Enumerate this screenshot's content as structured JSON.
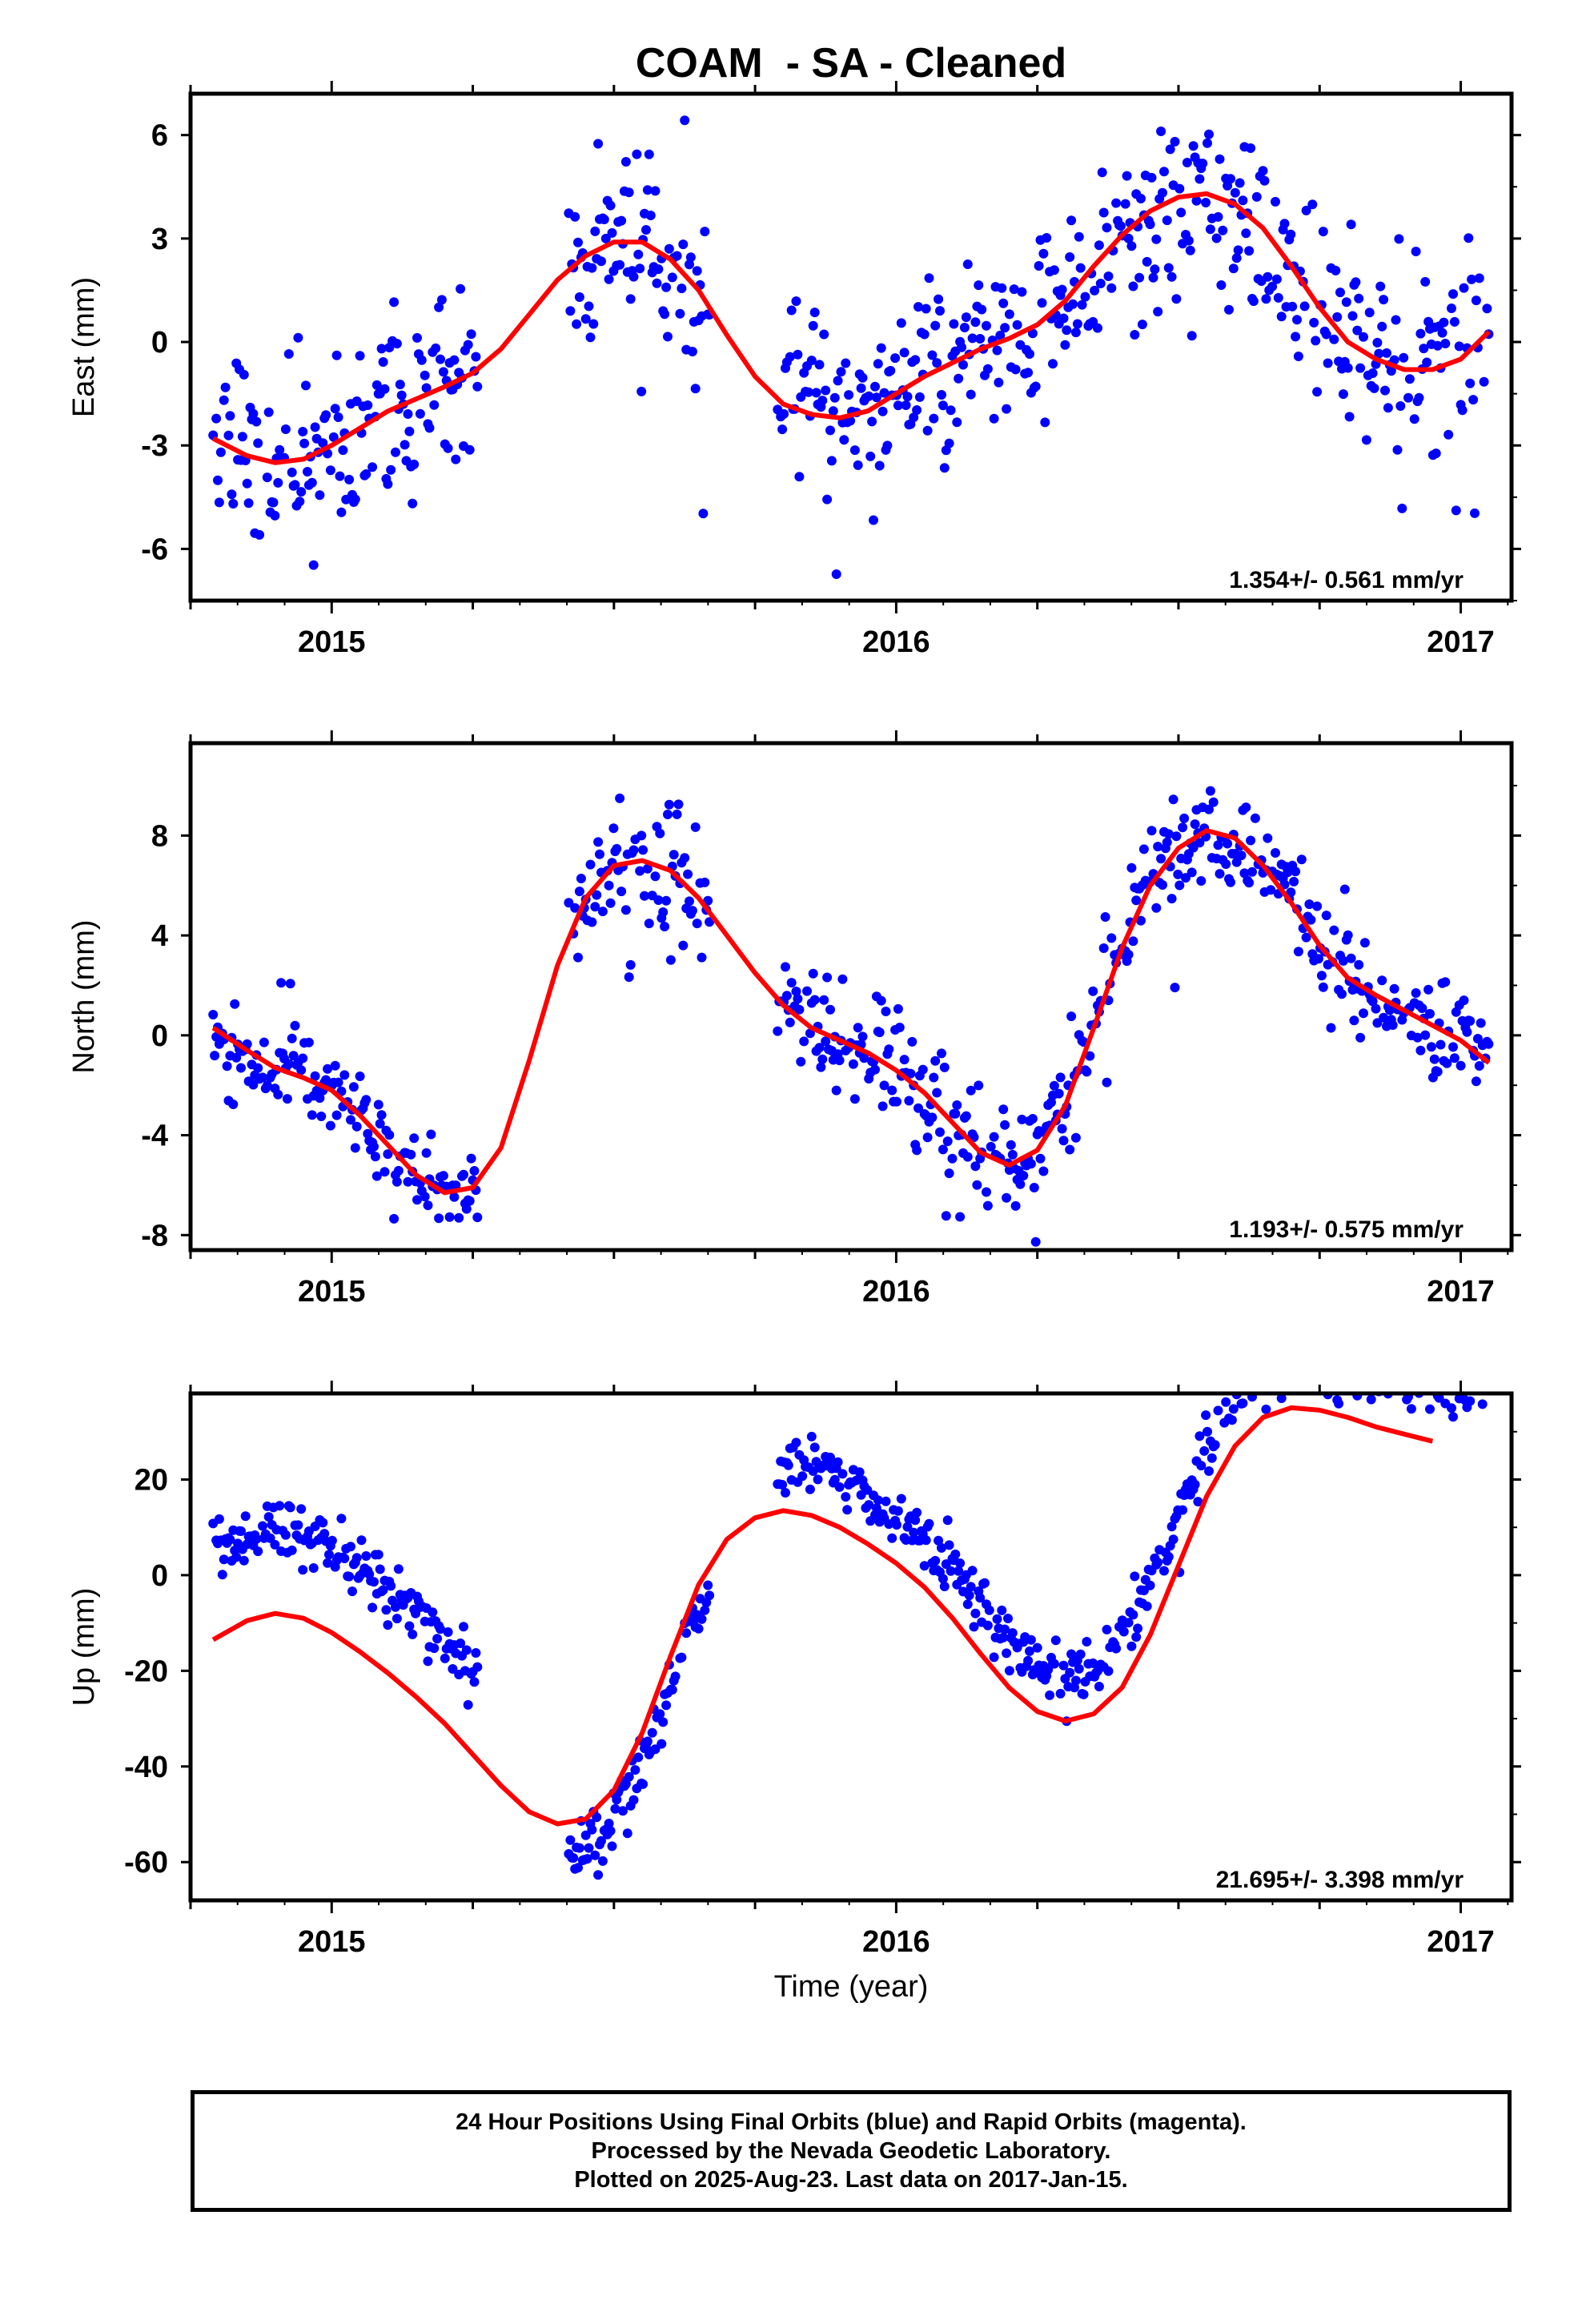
{
  "chart_data": {
    "title": "COAM  - SA - Cleaned",
    "type": "scatter",
    "xlabel": "Time (year)",
    "x_tick_labels": [
      "2015",
      "2016",
      "2017"
    ],
    "x_ticks": [
      2015,
      2016,
      2017
    ],
    "xlim": [
      2014.75,
      2017.09
    ],
    "colors": {
      "points": "#0000ff",
      "fit": "#ff0000"
    },
    "panels": [
      {
        "id": "east",
        "ylabel": "East (mm)",
        "ylim": [
          -7.5,
          7.2
        ],
        "y_ticks": [
          -6,
          -3,
          0,
          3,
          6
        ],
        "y_tick_labels": [
          "-6",
          "-3",
          "0",
          "3",
          "6"
        ],
        "rate_text": "1.354+/- 0.561 mm/yr",
        "data_segments": [
          {
            "start": 2014.79,
            "end": 2015.26,
            "amplitude": 1.3,
            "seed": 11,
            "outlier_rate": 0.08
          },
          {
            "start": 2015.42,
            "end": 2015.67,
            "amplitude": 1.2,
            "seed": 12,
            "outlier_rate": 0.08
          },
          {
            "start": 2015.79,
            "end": 2017.05,
            "amplitude": 1.4,
            "seed": 13,
            "outlier_rate": 0.06
          }
        ],
        "fit_curve": [
          [
            2014.79,
            -2.8
          ],
          [
            2014.85,
            -3.3
          ],
          [
            2014.9,
            -3.5
          ],
          [
            2014.95,
            -3.4
          ],
          [
            2015.0,
            -3.0
          ],
          [
            2015.05,
            -2.5
          ],
          [
            2015.1,
            -2.0
          ],
          [
            2015.2,
            -1.3
          ],
          [
            2015.25,
            -0.9
          ],
          [
            2015.3,
            -0.2
          ],
          [
            2015.35,
            0.8
          ],
          [
            2015.4,
            1.8
          ],
          [
            2015.45,
            2.5
          ],
          [
            2015.5,
            2.9
          ],
          [
            2015.55,
            2.9
          ],
          [
            2015.6,
            2.4
          ],
          [
            2015.65,
            1.5
          ],
          [
            2015.7,
            0.2
          ],
          [
            2015.75,
            -1.0
          ],
          [
            2015.8,
            -1.8
          ],
          [
            2015.85,
            -2.1
          ],
          [
            2015.9,
            -2.2
          ],
          [
            2015.95,
            -2.0
          ],
          [
            2016.0,
            -1.5
          ],
          [
            2016.05,
            -1.0
          ],
          [
            2016.1,
            -0.6
          ],
          [
            2016.15,
            -0.2
          ],
          [
            2016.2,
            0.1
          ],
          [
            2016.25,
            0.5
          ],
          [
            2016.3,
            1.2
          ],
          [
            2016.35,
            2.2
          ],
          [
            2016.4,
            3.1
          ],
          [
            2016.45,
            3.8
          ],
          [
            2016.5,
            4.2
          ],
          [
            2016.55,
            4.3
          ],
          [
            2016.6,
            4.0
          ],
          [
            2016.65,
            3.3
          ],
          [
            2016.7,
            2.2
          ],
          [
            2016.75,
            1.0
          ],
          [
            2016.8,
            0.0
          ],
          [
            2016.85,
            -0.5
          ],
          [
            2016.9,
            -0.8
          ],
          [
            2016.95,
            -0.8
          ],
          [
            2017.0,
            -0.5
          ],
          [
            2017.05,
            0.3
          ]
        ]
      },
      {
        "id": "north",
        "ylabel": "North (mm)",
        "ylim": [
          -8.6,
          11.7
        ],
        "y_ticks": [
          -8,
          -4,
          0,
          4,
          8
        ],
        "y_tick_labels": [
          "-8",
          "-4",
          "0",
          "4",
          "8"
        ],
        "rate_text": "1.193+/- 0.575 mm/yr",
        "data_segments": [
          {
            "start": 2014.79,
            "end": 2015.26,
            "amplitude": 0.9,
            "seed": 21,
            "outlier_rate": 0.05
          },
          {
            "start": 2015.42,
            "end": 2015.67,
            "amplitude": 1.2,
            "seed": 22,
            "outlier_rate": 0.06
          },
          {
            "start": 2015.79,
            "end": 2017.05,
            "amplitude": 1.0,
            "seed": 23,
            "outlier_rate": 0.05
          }
        ],
        "fit_curve": [
          [
            2014.79,
            0.3
          ],
          [
            2014.85,
            -0.6
          ],
          [
            2014.9,
            -1.3
          ],
          [
            2014.95,
            -1.7
          ],
          [
            2015.0,
            -2.2
          ],
          [
            2015.05,
            -3.2
          ],
          [
            2015.1,
            -4.4
          ],
          [
            2015.15,
            -5.6
          ],
          [
            2015.2,
            -6.3
          ],
          [
            2015.25,
            -6.1
          ],
          [
            2015.3,
            -4.5
          ],
          [
            2015.35,
            -1.0
          ],
          [
            2015.4,
            2.8
          ],
          [
            2015.45,
            5.5
          ],
          [
            2015.5,
            6.8
          ],
          [
            2015.55,
            7.0
          ],
          [
            2015.6,
            6.6
          ],
          [
            2015.65,
            5.5
          ],
          [
            2015.7,
            4.0
          ],
          [
            2015.75,
            2.5
          ],
          [
            2015.8,
            1.2
          ],
          [
            2015.85,
            0.3
          ],
          [
            2015.9,
            -0.2
          ],
          [
            2015.95,
            -0.7
          ],
          [
            2016.0,
            -1.4
          ],
          [
            2016.05,
            -2.3
          ],
          [
            2016.1,
            -3.5
          ],
          [
            2016.15,
            -4.7
          ],
          [
            2016.2,
            -5.2
          ],
          [
            2016.25,
            -4.6
          ],
          [
            2016.3,
            -2.8
          ],
          [
            2016.35,
            0.3
          ],
          [
            2016.4,
            3.5
          ],
          [
            2016.45,
            6.0
          ],
          [
            2016.5,
            7.5
          ],
          [
            2016.55,
            8.2
          ],
          [
            2016.6,
            7.9
          ],
          [
            2016.65,
            6.8
          ],
          [
            2016.7,
            5.3
          ],
          [
            2016.75,
            3.6
          ],
          [
            2016.8,
            2.3
          ],
          [
            2016.85,
            1.6
          ],
          [
            2016.9,
            1.0
          ],
          [
            2016.95,
            0.4
          ],
          [
            2017.0,
            -0.2
          ],
          [
            2017.05,
            -1.1
          ]
        ]
      },
      {
        "id": "up",
        "ylabel": "Up (mm)",
        "ylim": [
          -68,
          38
        ],
        "y_ticks": [
          -60,
          -40,
          -20,
          0,
          20
        ],
        "y_tick_labels": [
          "-60",
          "-40",
          "-20",
          "0",
          "20"
        ],
        "rate_text": "21.695+/- 3.398 mm/yr",
        "data_segments": [
          {
            "start": 2014.79,
            "end": 2015.26,
            "amplitude": 3.0,
            "seed": 31,
            "offset": 18,
            "outlier_rate": 0.04
          },
          {
            "start": 2015.42,
            "end": 2015.67,
            "amplitude": 3.0,
            "seed": 32,
            "offset": -6,
            "outlier_rate": 0.04
          },
          {
            "start": 2015.79,
            "end": 2017.05,
            "amplitude": 3.0,
            "seed": 33,
            "offset": 10,
            "outlier_rate": 0.03
          }
        ],
        "fit_curve": [
          [
            2014.79,
            -13.5
          ],
          [
            2014.85,
            -9.5
          ],
          [
            2014.9,
            -8.0
          ],
          [
            2014.95,
            -9.0
          ],
          [
            2015.0,
            -12.0
          ],
          [
            2015.05,
            -16.0
          ],
          [
            2015.1,
            -20.5
          ],
          [
            2015.15,
            -25.5
          ],
          [
            2015.2,
            -31.0
          ],
          [
            2015.25,
            -37.5
          ],
          [
            2015.3,
            -44.0
          ],
          [
            2015.35,
            -49.5
          ],
          [
            2015.4,
            -52.0
          ],
          [
            2015.45,
            -51.0
          ],
          [
            2015.5,
            -45.0
          ],
          [
            2015.55,
            -33.0
          ],
          [
            2015.6,
            -17.0
          ],
          [
            2015.65,
            -2.0
          ],
          [
            2015.7,
            7.5
          ],
          [
            2015.75,
            12.0
          ],
          [
            2015.8,
            13.5
          ],
          [
            2015.85,
            12.5
          ],
          [
            2015.9,
            10.0
          ],
          [
            2015.95,
            6.5
          ],
          [
            2016.0,
            2.5
          ],
          [
            2016.05,
            -2.5
          ],
          [
            2016.1,
            -9.0
          ],
          [
            2016.15,
            -16.5
          ],
          [
            2016.2,
            -23.5
          ],
          [
            2016.25,
            -28.5
          ],
          [
            2016.3,
            -30.5
          ],
          [
            2016.35,
            -29.0
          ],
          [
            2016.4,
            -23.5
          ],
          [
            2016.45,
            -12.5
          ],
          [
            2016.5,
            2.0
          ],
          [
            2016.55,
            16.5
          ],
          [
            2016.6,
            27.0
          ],
          [
            2016.65,
            33.0
          ],
          [
            2016.7,
            35.0
          ],
          [
            2016.75,
            34.5
          ],
          [
            2016.8,
            33.0
          ],
          [
            2016.85,
            31.0
          ],
          [
            2016.9,
            29.5
          ],
          [
            2016.95,
            28.0
          ]
        ]
      }
    ]
  },
  "caption": {
    "line1": "24 Hour Positions Using Final Orbits (blue) and Rapid Orbits (magenta).",
    "line2": "Processed by the Nevada Geodetic Laboratory.",
    "line3": "Plotted on 2025-Aug-23. Last data on 2017-Jan-15."
  }
}
